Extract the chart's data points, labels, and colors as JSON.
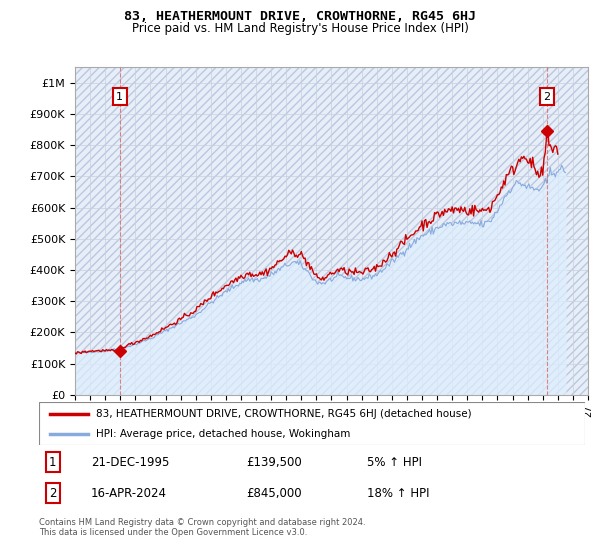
{
  "title": "83, HEATHERMOUNT DRIVE, CROWTHORNE, RG45 6HJ",
  "subtitle": "Price paid vs. HM Land Registry's House Price Index (HPI)",
  "legend_line1": "83, HEATHERMOUNT DRIVE, CROWTHORNE, RG45 6HJ (detached house)",
  "legend_line2": "HPI: Average price, detached house, Wokingham",
  "footnote": "Contains HM Land Registry data © Crown copyright and database right 2024.\nThis data is licensed under the Open Government Licence v3.0.",
  "sale1_date": "21-DEC-1995",
  "sale1_price": "£139,500",
  "sale1_hpi": "5% ↑ HPI",
  "sale2_date": "16-APR-2024",
  "sale2_price": "£845,000",
  "sale2_hpi": "18% ↑ HPI",
  "sale1_x": 1995.97,
  "sale1_y": 139500,
  "sale2_x": 2024.29,
  "sale2_y": 845000,
  "price_line_color": "#cc0000",
  "hpi_line_color": "#88aadd",
  "hpi_fill_color": "#ddeeff",
  "dashed_line_color": "#dd6666",
  "marker_color": "#cc0000",
  "bg_color": "#e8eef8",
  "grid_color": "#c8d0e0",
  "xmin": 1993,
  "xmax": 2027,
  "ymin": 0,
  "ymax": 1050000,
  "yticks": [
    0,
    100000,
    200000,
    300000,
    400000,
    500000,
    600000,
    700000,
    800000,
    900000,
    1000000
  ],
  "ytick_labels": [
    "£0",
    "£100K",
    "£200K",
    "£300K",
    "£400K",
    "£500K",
    "£600K",
    "£700K",
    "£800K",
    "£900K",
    "£1M"
  ]
}
